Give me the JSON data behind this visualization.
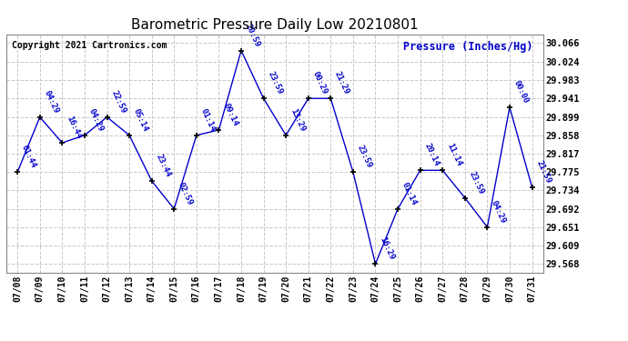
{
  "title": "Barometric Pressure Daily Low 20210801",
  "ylabel": "Pressure (Inches/Hg)",
  "copyright": "Copyright 2021 Cartronics.com",
  "line_color": "#0000CC",
  "marker_color": "#000000",
  "background_color": "#ffffff",
  "grid_color": "#c8c8c8",
  "ylim_min": 29.548,
  "ylim_max": 30.086,
  "ytick_values": [
    29.568,
    29.609,
    29.651,
    29.692,
    29.734,
    29.775,
    29.817,
    29.858,
    29.899,
    29.941,
    29.983,
    30.024,
    30.066
  ],
  "dates": [
    "07/08",
    "07/09",
    "07/10",
    "07/11",
    "07/12",
    "07/13",
    "07/14",
    "07/15",
    "07/16",
    "07/17",
    "07/18",
    "07/19",
    "07/20",
    "07/21",
    "07/22",
    "07/23",
    "07/24",
    "07/25",
    "07/26",
    "07/27",
    "07/28",
    "07/29",
    "07/30",
    "07/31"
  ],
  "values": [
    29.775,
    29.899,
    29.841,
    29.858,
    29.899,
    29.858,
    29.755,
    29.692,
    29.858,
    29.87,
    30.049,
    29.941,
    29.858,
    29.941,
    29.941,
    29.775,
    29.568,
    29.692,
    29.779,
    29.779,
    29.717,
    29.651,
    29.921,
    29.741
  ],
  "point_labels": [
    "01:44",
    "04:29",
    "16:44",
    "04:29",
    "22:59",
    "05:14",
    "23:44",
    "02:59",
    "01:14",
    "09:14",
    "20:59",
    "23:59",
    "13:29",
    "00:29",
    "21:29",
    "23:59",
    "16:29",
    "01:14",
    "20:14",
    "11:14",
    "23:59",
    "04:29",
    "00:00",
    "21:59"
  ]
}
